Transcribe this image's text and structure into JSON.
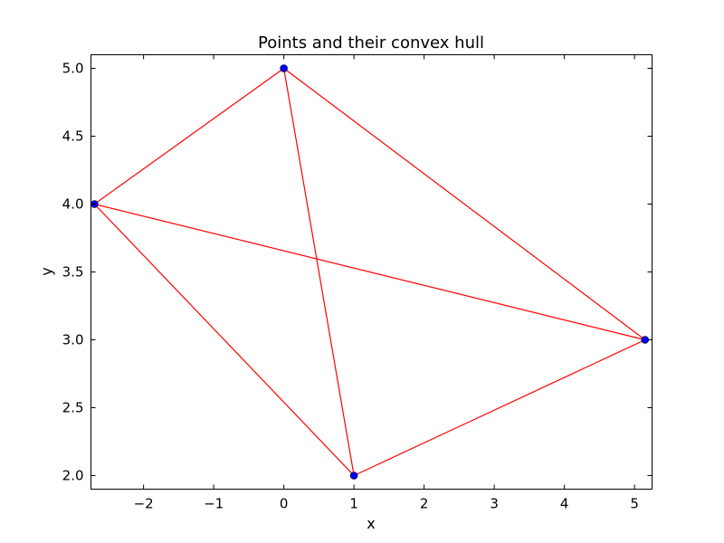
{
  "chart_data": {
    "type": "scatter",
    "title": "Points and their convex hull",
    "xlabel": "x",
    "ylabel": "y",
    "xlim": [
      -2.75,
      5.25
    ],
    "ylim": [
      1.9,
      5.1
    ],
    "grid": false,
    "x_ticks": [
      -2,
      -1,
      0,
      1,
      2,
      3,
      4,
      5
    ],
    "x_tick_labels": [
      "−2",
      "−1",
      "0",
      "1",
      "2",
      "3",
      "4",
      "5"
    ],
    "y_ticks": [
      2.0,
      2.5,
      3.0,
      3.5,
      4.0,
      4.5,
      5.0
    ],
    "y_tick_labels": [
      "2.0",
      "2.5",
      "3.0",
      "3.5",
      "4.0",
      "4.5",
      "5.0"
    ],
    "points": [
      {
        "x": -2.7,
        "y": 4.0
      },
      {
        "x": 0.0,
        "y": 5.0
      },
      {
        "x": 5.15,
        "y": 3.0
      },
      {
        "x": 1.0,
        "y": 2.0
      }
    ],
    "segments": [
      [
        0,
        1
      ],
      [
        1,
        2
      ],
      [
        2,
        3
      ],
      [
        3,
        0
      ],
      [
        1,
        3
      ],
      [
        0,
        2
      ]
    ],
    "point_color": "#0000ff",
    "line_color": "#ff0000"
  }
}
